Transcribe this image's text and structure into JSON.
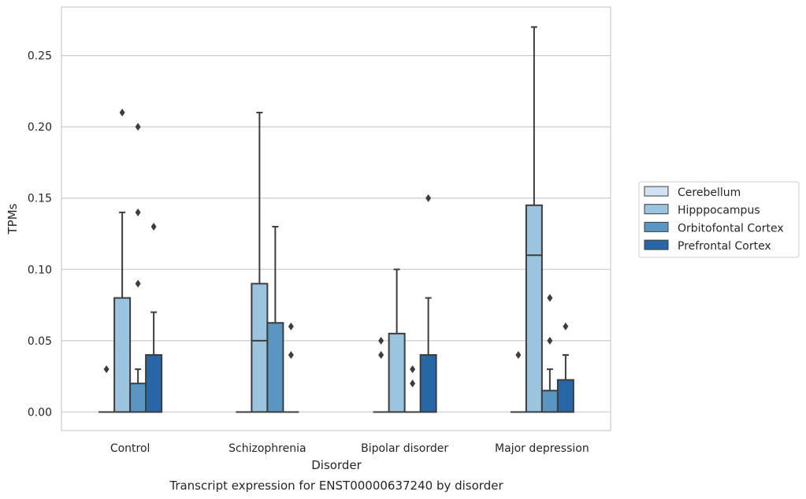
{
  "chart_data": {
    "type": "box",
    "caption": "Transcript expression for ENST00000637240 by disorder",
    "xlabel": "Disorder",
    "ylabel": "TPMs",
    "ylim": [
      -0.013,
      0.284
    ],
    "yticks": [
      0.0,
      0.05,
      0.1,
      0.15,
      0.2,
      0.25
    ],
    "ytick_labels": [
      "0.00",
      "0.05",
      "0.10",
      "0.15",
      "0.20",
      "0.25"
    ],
    "grid": true,
    "legend_position": "right",
    "categories": [
      "Control",
      "Schizophrenia",
      "Bipolar disorder",
      "Major depression"
    ],
    "series": [
      {
        "name": "Cerebellum",
        "color": "#d1e2f2",
        "boxes": [
          {
            "q1": 0,
            "median": 0,
            "q3": 0,
            "whisker_low": 0,
            "whisker_high": 0,
            "outliers": [
              0.03
            ]
          },
          {
            "q1": 0,
            "median": 0,
            "q3": 0,
            "whisker_low": 0,
            "whisker_high": 0,
            "outliers": []
          },
          {
            "q1": 0,
            "median": 0,
            "q3": 0,
            "whisker_low": 0,
            "whisker_high": 0,
            "outliers": [
              0.04,
              0.05
            ]
          },
          {
            "q1": 0,
            "median": 0,
            "q3": 0,
            "whisker_low": 0,
            "whisker_high": 0,
            "outliers": [
              0.04
            ]
          }
        ]
      },
      {
        "name": "Hipppocampus",
        "color": "#9bc4de",
        "boxes": [
          {
            "q1": 0,
            "median": 0,
            "q3": 0.08,
            "whisker_low": 0,
            "whisker_high": 0.14,
            "outliers": [
              0.21
            ]
          },
          {
            "q1": 0,
            "median": 0.05,
            "q3": 0.09,
            "whisker_low": 0,
            "whisker_high": 0.21,
            "outliers": []
          },
          {
            "q1": 0,
            "median": 0,
            "q3": 0.055,
            "whisker_low": 0,
            "whisker_high": 0.1,
            "outliers": []
          },
          {
            "q1": 0,
            "median": 0.11,
            "q3": 0.145,
            "whisker_low": 0,
            "whisker_high": 0.27,
            "outliers": []
          }
        ]
      },
      {
        "name": "Orbitofontal Cortex",
        "color": "#5a96c2",
        "boxes": [
          {
            "q1": 0,
            "median": 0,
            "q3": 0.02,
            "whisker_low": 0,
            "whisker_high": 0.03,
            "outliers": [
              0.09,
              0.14,
              0.2
            ]
          },
          {
            "q1": 0,
            "median": 0,
            "q3": 0.0625,
            "whisker_low": 0,
            "whisker_high": 0.13,
            "outliers": []
          },
          {
            "q1": 0,
            "median": 0,
            "q3": 0,
            "whisker_low": 0,
            "whisker_high": 0,
            "outliers": [
              0.02,
              0.03
            ]
          },
          {
            "q1": 0,
            "median": 0,
            "q3": 0.015,
            "whisker_low": 0,
            "whisker_high": 0.03,
            "outliers": [
              0.05,
              0.08
            ]
          }
        ]
      },
      {
        "name": "Prefrontal Cortex",
        "color": "#2767a7",
        "boxes": [
          {
            "q1": 0,
            "median": 0,
            "q3": 0.04,
            "whisker_low": 0,
            "whisker_high": 0.07,
            "outliers": [
              0.13
            ]
          },
          {
            "q1": 0,
            "median": 0,
            "q3": 0,
            "whisker_low": 0,
            "whisker_high": 0,
            "outliers": [
              0.04,
              0.06
            ]
          },
          {
            "q1": 0,
            "median": 0,
            "q3": 0.04,
            "whisker_low": 0,
            "whisker_high": 0.08,
            "outliers": [
              0.15
            ]
          },
          {
            "q1": 0,
            "median": 0,
            "q3": 0.0225,
            "whisker_low": 0,
            "whisker_high": 0.04,
            "outliers": [
              0.06
            ]
          }
        ]
      }
    ]
  }
}
